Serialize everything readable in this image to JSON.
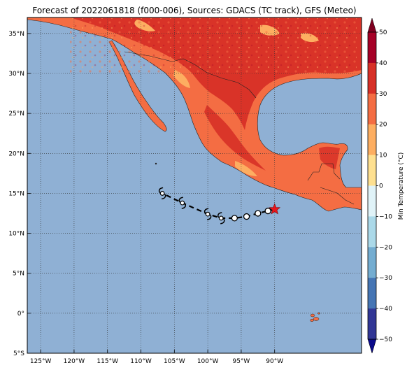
{
  "title": "Forecast of 2022061818 (f000-006), Sources: GDACS (TC track), GFS (Meteo)",
  "map": {
    "lon_range": [
      -127,
      -77
    ],
    "lat_range": [
      -5,
      37
    ],
    "lon_ticks": [
      -125,
      -120,
      -115,
      -110,
      -105,
      -100,
      -95,
      -90
    ],
    "lat_ticks": [
      -5,
      0,
      5,
      10,
      15,
      20,
      25,
      30,
      35
    ],
    "lon_tick_labels": [
      "125°W",
      "120°W",
      "115°W",
      "110°W",
      "105°W",
      "100°W",
      "95°W",
      "90°W"
    ],
    "lat_tick_labels": [
      "5°S",
      "0°",
      "5°N",
      "10°N",
      "15°N",
      "20°N",
      "25°N",
      "30°N",
      "35°N"
    ],
    "grid": "dotted",
    "ocean_color": "#8fb0d4"
  },
  "colorbar": {
    "label": "Min Temperature (°C)",
    "ticks": [
      50,
      40,
      30,
      20,
      10,
      0,
      -10,
      -20,
      -30,
      -40,
      -50
    ],
    "tick_labels": [
      "50",
      "40",
      "30",
      "20",
      "10",
      "0",
      "−10",
      "−20",
      "−30",
      "−40",
      "−50"
    ],
    "extend": "both",
    "colors_top_to_bottom": [
      "#a50026",
      "#d73027",
      "#f46d43",
      "#fdae61",
      "#fee090",
      "#e0f3f8",
      "#abd9e9",
      "#74add1",
      "#4575b4",
      "#313695"
    ],
    "extend_top_color": "#7f0020",
    "extend_bottom_color": "#0a0a8a"
  },
  "track": {
    "current_position": {
      "lon": -90.0,
      "lat": 13.0,
      "symbol": "red-star"
    },
    "points": [
      {
        "lon": -91.0,
        "lat": 12.8,
        "symbol": "circle"
      },
      {
        "lon": -92.5,
        "lat": 12.5,
        "symbol": "circle"
      },
      {
        "lon": -94.2,
        "lat": 12.1,
        "symbol": "circle"
      },
      {
        "lon": -96.0,
        "lat": 11.9,
        "symbol": "circle"
      },
      {
        "lon": -98.0,
        "lat": 11.9,
        "symbol": "storm"
      },
      {
        "lon": -100.0,
        "lat": 12.4,
        "symbol": "storm"
      },
      {
        "lon": -103.8,
        "lat": 13.8,
        "symbol": "storm"
      },
      {
        "lon": -106.8,
        "lat": 15.0,
        "symbol": "storm"
      }
    ],
    "line_style": "dashed"
  }
}
